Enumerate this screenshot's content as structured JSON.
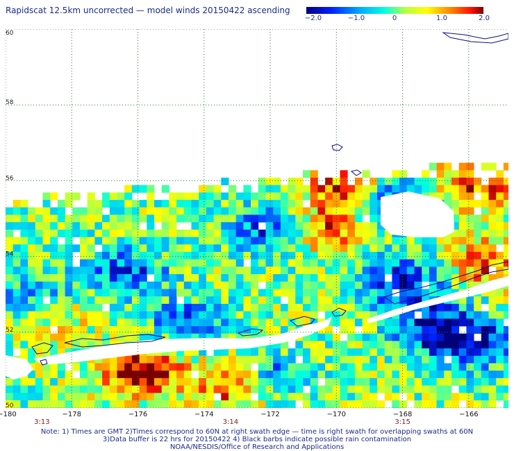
{
  "title": "Rapidscat 12.5km uncorrected — model winds 20150422 ascending",
  "colorbar": {
    "labels": [
      "−2.0",
      "−1.0",
      "0",
      "1.0",
      "2.0"
    ],
    "min": -2.0,
    "max": 2.0
  },
  "axes": {
    "lon_labels": [
      "−180",
      "−178",
      "−176",
      "−174",
      "−172",
      "−170",
      "−168",
      "−166"
    ],
    "lat_labels": [
      "60",
      "58",
      "56",
      "54",
      "52",
      "50"
    ],
    "lon_range": [
      -180,
      -164.8
    ],
    "lat_range": [
      50,
      60
    ]
  },
  "times": [
    {
      "label": "3:13",
      "lon": -178.9
    },
    {
      "label": "3:14",
      "lon": -173.2
    },
    {
      "label": "3:15",
      "lon": -168.0
    }
  ],
  "notes": {
    "line1": "Note: 1) Times are GMT 2)Times correspond to 60N at right swath edge — time is right swath for overlapping swaths at 60N",
    "line2": "3)Data buffer is 22 hrs for 20150422 4) Black barbs indicate possible rain contamination",
    "line3": "NOAA/NESDIS/Office of Research and Applications"
  },
  "chart_data": {
    "type": "heatmap",
    "title": "Rapidscat 12.5km uncorrected — model winds 20150422 ascending",
    "xlim": [
      -180,
      -164.8
    ],
    "ylim": [
      50,
      60
    ],
    "value_range": [
      -2.0,
      2.0
    ],
    "grid": true,
    "swath_lat_top": {
      "west": 55.5,
      "mid": 56.1,
      "east": 56.5
    },
    "hot_spots": [
      {
        "lon": -175.9,
        "lat": 51.0,
        "value": 2.0
      },
      {
        "lon": -173.0,
        "lat": 50.6,
        "value": 1.6
      },
      {
        "lon": -170.3,
        "lat": 54.7,
        "value": 1.4
      },
      {
        "lon": -165.8,
        "lat": 55.9,
        "value": 1.4
      },
      {
        "lon": -178.5,
        "lat": 52.6,
        "value": 1.2
      },
      {
        "lon": -169.8,
        "lat": 55.9,
        "value": 1.3
      },
      {
        "lon": -165.5,
        "lat": 53.8,
        "value": 1.3
      }
    ],
    "cold_spots": [
      {
        "lon": -168.0,
        "lat": 53.3,
        "value": -1.8
      },
      {
        "lon": -167.0,
        "lat": 52.1,
        "value": -1.7
      },
      {
        "lon": -165.7,
        "lat": 51.7,
        "value": -1.7
      },
      {
        "lon": -178.9,
        "lat": 52.9,
        "value": -1.6
      },
      {
        "lon": -176.3,
        "lat": 53.6,
        "value": -1.4
      },
      {
        "lon": -172.0,
        "lat": 54.7,
        "value": -1.5
      },
      {
        "lon": -172.0,
        "lat": 50.8,
        "value": -1.5
      },
      {
        "lon": -168.2,
        "lat": 55.4,
        "value": -1.5
      },
      {
        "lon": -174.5,
        "lat": 52.2,
        "value": -1.3
      }
    ]
  }
}
